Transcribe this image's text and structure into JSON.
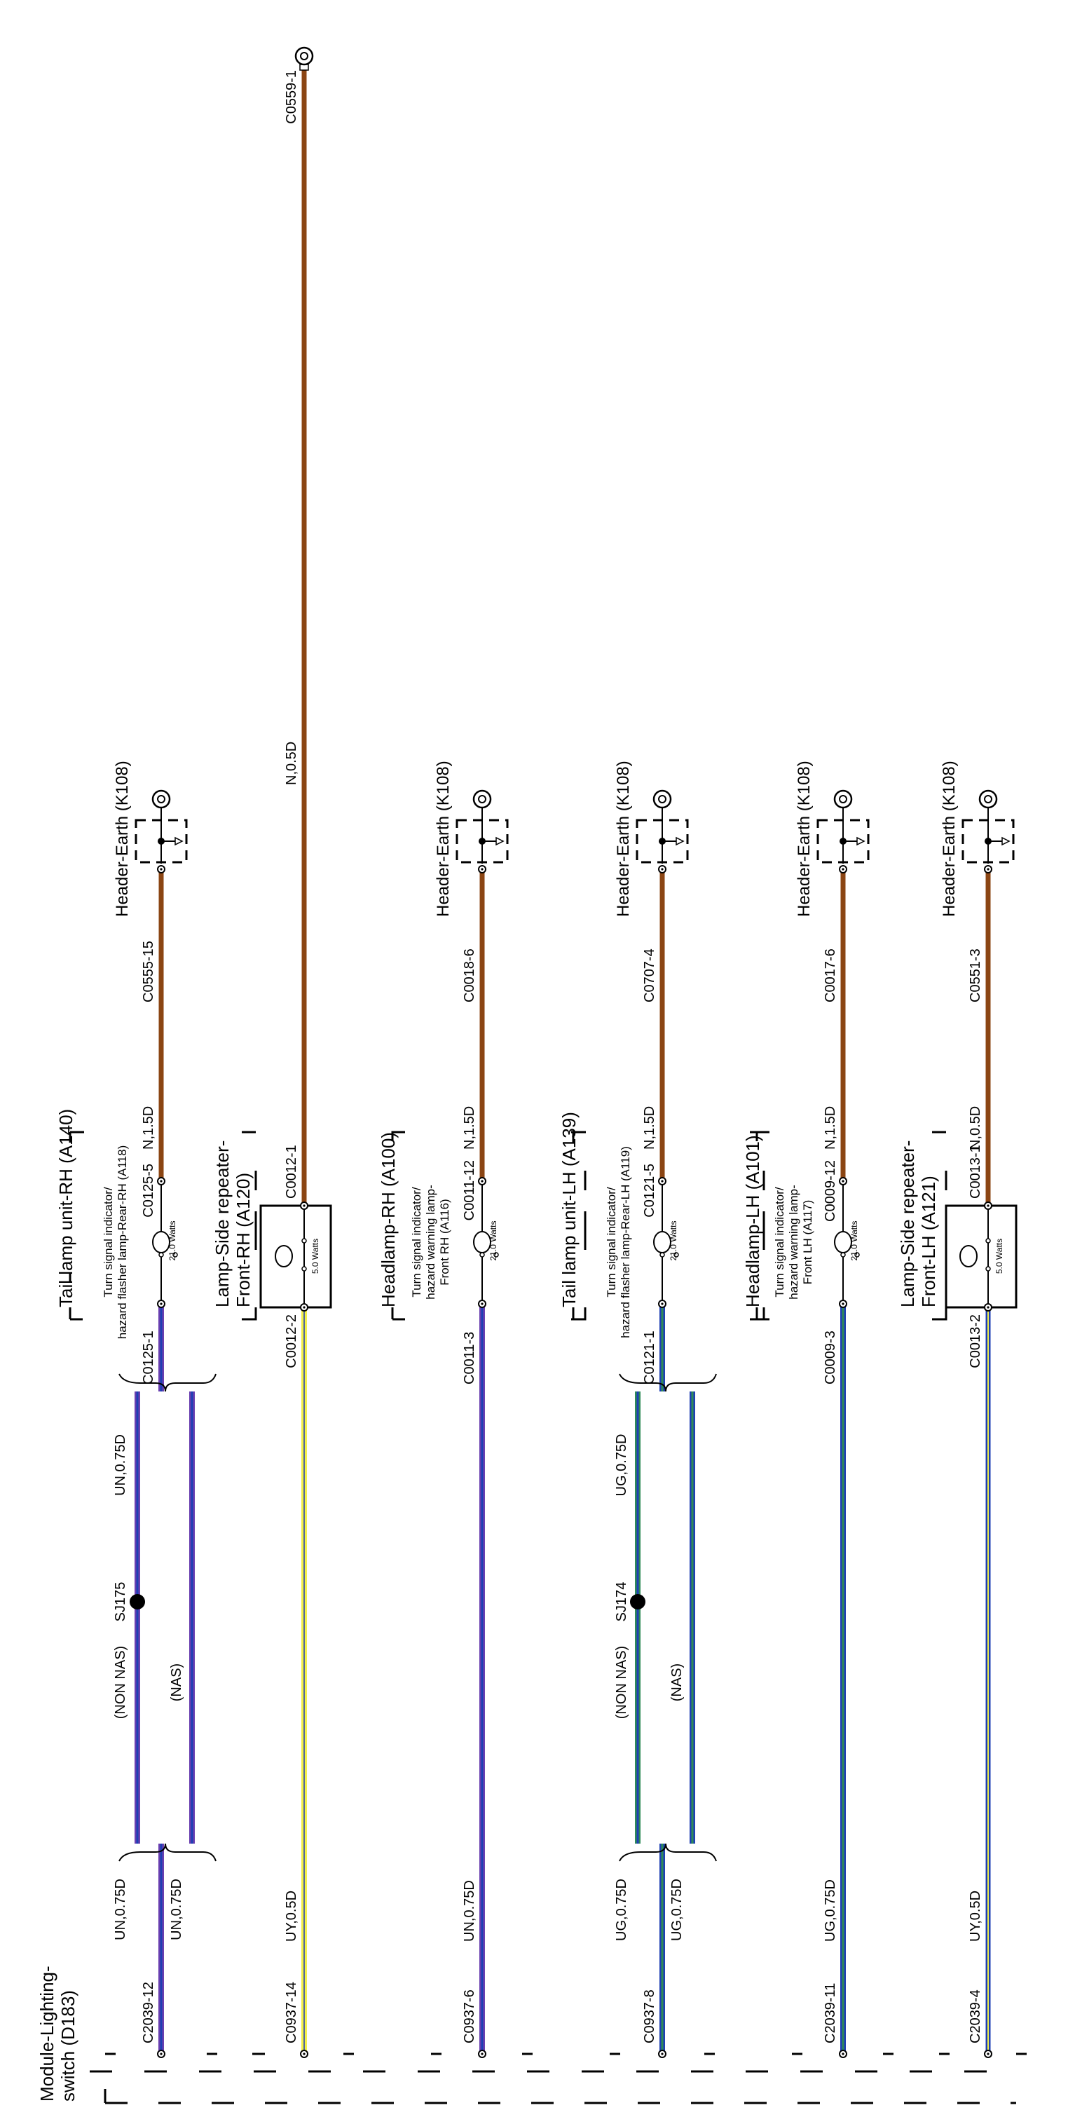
{
  "module": {
    "title_line1": "Module-Lighting-",
    "title_line2": "switch (D183)"
  },
  "colors": {
    "N": "#8B4513",
    "U": "#1e3fb4",
    "R": "#6a3fb0",
    "G": "#2e8b57",
    "Y": "#f2ef4a"
  },
  "earth": {
    "label": "Header-Earth (K108)"
  },
  "columns": [
    {
      "id": "c1",
      "earth_connector": "C0555-15",
      "comp_name": "Tail lamp unit-RH (A140)",
      "func_line1": "Turn signal indicator/",
      "func_line2": "hazard flasher lamp-Rear-RH (A118)",
      "watts": "21.0 Watts",
      "conn_top": "C0125-5",
      "conn_bot": "C0125-1",
      "top_wire": "N,1.5D",
      "bottom_connector": "C2039-12",
      "splice": "SJ175",
      "wire_a_low": "UN,0.75D",
      "wire_a_mid": "(NON NAS)",
      "wire_a_high": "UN,0.75D",
      "wire_b_low": "UN,0.75D",
      "wire_b_mid": "(NAS)"
    },
    {
      "id": "c2",
      "earth_connector": "C0559-1",
      "comp_name_line1": "Lamp-Side repeater-",
      "comp_name_line2": "Front-RH (A120)",
      "watts": "5.0 Watts",
      "conn_top": "C0012-1",
      "conn_bot": "C0012-2",
      "top_wire": "N,0.5D",
      "bottom_connector": "C0937-14",
      "bottom_wire": "UY,0.5D"
    },
    {
      "id": "c3",
      "earth_connector": "C0018-6",
      "comp_name": "Headlamp-RH (A100)",
      "func_line1": "Turn signal indicator/",
      "func_line2": "hazard warning lamp-",
      "func_line3": "Front RH (A116)",
      "watts": "21.0 Watts",
      "conn_top": "C0011-12",
      "conn_bot": "C0011-3",
      "top_wire": "N,1.5D",
      "bottom_connector": "C0937-6",
      "bottom_wire": "UN,0.75D"
    },
    {
      "id": "c4",
      "earth_connector": "C0707-4",
      "comp_name": "Tail lamp unit-LH (A139)",
      "func_line1": "Turn signal indicator/",
      "func_line2": "hazard flasher lamp-Rear-LH (A119)",
      "watts": "21.0 Watts",
      "conn_top": "C0121-5",
      "conn_bot": "C0121-1",
      "top_wire": "N,1.5D",
      "bottom_connector": "C0937-8",
      "splice": "SJ174",
      "wire_a_low": "UG,0.75D",
      "wire_a_mid": "(NON NAS)",
      "wire_a_high": "UG,0.75D",
      "wire_b_low": "UG,0.75D",
      "wire_b_mid": "(NAS)"
    },
    {
      "id": "c5",
      "earth_connector": "C0017-6",
      "comp_name": "Headlamp-LH (A101)",
      "func_line1": "Turn signal indicator/",
      "func_line2": "hazard warning lamp-",
      "func_line3": "Front LH (A117)",
      "watts": "21.0 Watts",
      "conn_top": "C0009-12",
      "conn_bot": "C0009-3",
      "top_wire": "N,1.5D",
      "bottom_connector": "C2039-11",
      "bottom_wire": "UG,0.75D"
    },
    {
      "id": "c6",
      "earth_connector": "C0551-3",
      "comp_name_line1": "Lamp-Side repeater-",
      "comp_name_line2": "Front-LH (A121)",
      "watts": "5.0 Watts",
      "conn_top": "C0013-1",
      "conn_bot": "C0013-2",
      "top_wire": "N,0.5D",
      "bottom_connector": "C2039-4",
      "bottom_wire": "UY,0.5D"
    }
  ]
}
